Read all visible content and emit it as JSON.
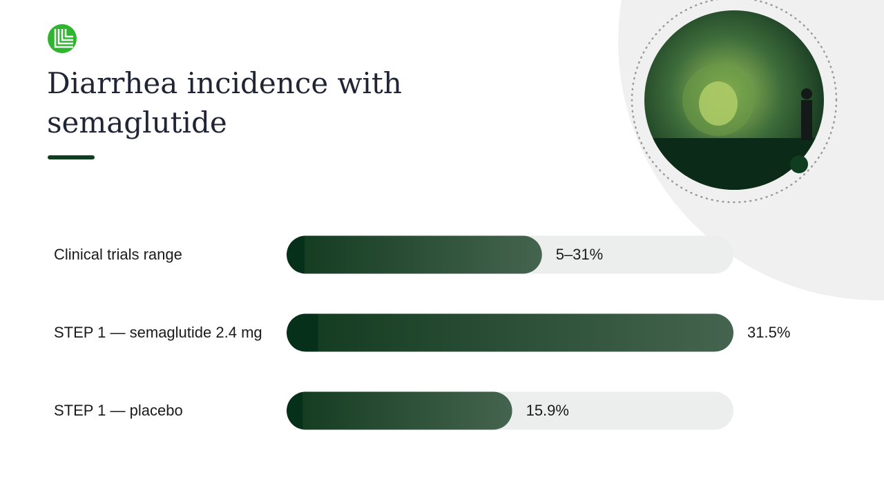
{
  "chart_data": {
    "type": "bar",
    "orientation": "horizontal",
    "title": "Diarrhea incidence with semaglutide",
    "categories": [
      "Clinical trials range",
      "STEP 1 — semaglutide 2.4 mg",
      "STEP 1 — placebo"
    ],
    "values": [
      31,
      31.5,
      15.9
    ],
    "range_low": [
      5,
      null,
      null
    ],
    "value_labels": [
      "5–31%",
      "31.5%",
      "15.9%"
    ],
    "xlim": [
      0,
      31.5
    ],
    "color": "#0f3d20"
  }
}
